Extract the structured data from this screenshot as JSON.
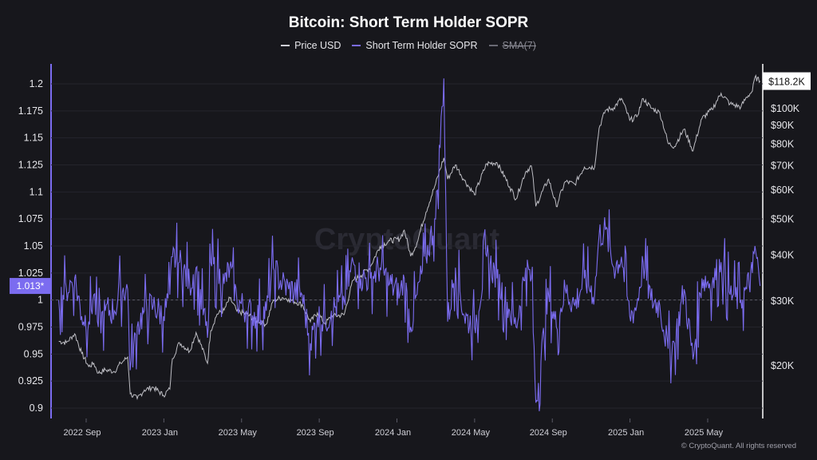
{
  "chart_data": {
    "type": "line",
    "title": "Bitcoin: Short Term Holder SOPR",
    "legend": [
      {
        "name": "Price USD",
        "color": "#cfcfd6",
        "enabled": true
      },
      {
        "name": "Short Term Holder SOPR",
        "color": "#7b6cf0",
        "enabled": true
      },
      {
        "name": "SMA(7)",
        "color": "#6a6a74",
        "enabled": false
      }
    ],
    "x_ticks": [
      "2022 Sep",
      "2023 Jan",
      "2023 May",
      "2023 Sep",
      "2024 Jan",
      "2024 May",
      "2024 Sep",
      "2025 Jan",
      "2025 May"
    ],
    "x_range": [
      "2022-07-20",
      "2025-07-22"
    ],
    "left_axis": {
      "ticks": [
        "1.2",
        "1.175",
        "1.15",
        "1.125",
        "1.1",
        "1.075",
        "1.05",
        "1.025",
        "1",
        "0.975",
        "0.95",
        "0.925",
        "0.9"
      ],
      "range": [
        0.895,
        1.21
      ],
      "current_label": "1.013*",
      "reference_line": 1.0
    },
    "right_axis": {
      "scale": "log",
      "ticks": [
        "$100K",
        "$90K",
        "$80K",
        "$70K",
        "$60K",
        "$50K",
        "$40K",
        "$30K",
        "$20K"
      ],
      "range": [
        15500,
        122000
      ],
      "current_label": "$118.2K"
    },
    "series": [
      {
        "name": "Price USD",
        "axis": "right",
        "color": "#cfcfd6",
        "points": [
          [
            "2022-07-20",
            23200
          ],
          [
            "2022-08-01",
            23000
          ],
          [
            "2022-08-14",
            24300
          ],
          [
            "2022-08-25",
            21500
          ],
          [
            "2022-09-05",
            19800
          ],
          [
            "2022-09-13",
            20200
          ],
          [
            "2022-09-20",
            19000
          ],
          [
            "2022-10-01",
            19400
          ],
          [
            "2022-10-15",
            19200
          ],
          [
            "2022-10-25",
            20200
          ],
          [
            "2022-11-05",
            21000
          ],
          [
            "2022-11-09",
            16700
          ],
          [
            "2022-11-20",
            16200
          ],
          [
            "2022-12-01",
            17100
          ],
          [
            "2022-12-15",
            17400
          ],
          [
            "2022-12-31",
            16550
          ],
          [
            "2023-01-10",
            17200
          ],
          [
            "2023-01-14",
            20800
          ],
          [
            "2023-01-25",
            23000
          ],
          [
            "2023-02-10",
            21800
          ],
          [
            "2023-02-20",
            24500
          ],
          [
            "2023-03-10",
            20200
          ],
          [
            "2023-03-15",
            24800
          ],
          [
            "2023-03-25",
            27500
          ],
          [
            "2023-04-05",
            28200
          ],
          [
            "2023-04-14",
            30400
          ],
          [
            "2023-04-25",
            28000
          ],
          [
            "2023-05-10",
            27500
          ],
          [
            "2023-05-25",
            26500
          ],
          [
            "2023-06-10",
            25800
          ],
          [
            "2023-06-21",
            30000
          ],
          [
            "2023-07-05",
            30500
          ],
          [
            "2023-07-15",
            30200
          ],
          [
            "2023-08-05",
            29200
          ],
          [
            "2023-08-18",
            26200
          ],
          [
            "2023-08-29",
            27700
          ],
          [
            "2023-09-10",
            25900
          ],
          [
            "2023-09-20",
            27100
          ],
          [
            "2023-10-10",
            27400
          ],
          [
            "2023-10-24",
            34000
          ],
          [
            "2023-11-05",
            35000
          ],
          [
            "2023-11-20",
            37000
          ],
          [
            "2023-12-05",
            42000
          ],
          [
            "2023-12-20",
            43500
          ],
          [
            "2024-01-05",
            44000
          ],
          [
            "2024-01-12",
            46500
          ],
          [
            "2024-01-22",
            39500
          ],
          [
            "2024-02-01",
            43000
          ],
          [
            "2024-02-15",
            52000
          ],
          [
            "2024-03-01",
            62000
          ],
          [
            "2024-03-14",
            73100
          ],
          [
            "2024-03-20",
            64000
          ],
          [
            "2024-04-01",
            70000
          ],
          [
            "2024-04-15",
            63500
          ],
          [
            "2024-05-01",
            58000
          ],
          [
            "2024-05-20",
            70500
          ],
          [
            "2024-06-05",
            71000
          ],
          [
            "2024-06-25",
            61000
          ],
          [
            "2024-07-05",
            56500
          ],
          [
            "2024-07-20",
            67000
          ],
          [
            "2024-07-29",
            69500
          ],
          [
            "2024-08-05",
            54000
          ],
          [
            "2024-08-25",
            64000
          ],
          [
            "2024-09-06",
            53900
          ],
          [
            "2024-09-20",
            63000
          ],
          [
            "2024-10-05",
            62000
          ],
          [
            "2024-10-20",
            69000
          ],
          [
            "2024-11-05",
            69000
          ],
          [
            "2024-11-12",
            88000
          ],
          [
            "2024-11-22",
            98500
          ],
          [
            "2024-12-05",
            100000
          ],
          [
            "2024-12-17",
            106000
          ],
          [
            "2024-12-30",
            92500
          ],
          [
            "2025-01-10",
            94500
          ],
          [
            "2025-01-20",
            106000
          ],
          [
            "2025-02-01",
            100000
          ],
          [
            "2025-02-15",
            97000
          ],
          [
            "2025-02-28",
            80000
          ],
          [
            "2025-03-10",
            78500
          ],
          [
            "2025-03-25",
            87500
          ],
          [
            "2025-04-08",
            76300
          ],
          [
            "2025-04-22",
            93500
          ],
          [
            "2025-05-08",
            99000
          ],
          [
            "2025-05-22",
            109500
          ],
          [
            "2025-06-05",
            102500
          ],
          [
            "2025-06-22",
            100500
          ],
          [
            "2025-07-01",
            107000
          ],
          [
            "2025-07-10",
            111000
          ],
          [
            "2025-07-14",
            121000
          ],
          [
            "2025-07-22",
            118200
          ]
        ]
      },
      {
        "name": "Short Term Holder SOPR",
        "axis": "left",
        "color": "#7b6cf0",
        "points": [
          [
            "2022-07-20",
            1.0
          ],
          [
            "2022-08-01",
            1.01
          ],
          [
            "2022-08-14",
            1.02
          ],
          [
            "2022-08-25",
            0.985
          ],
          [
            "2022-09-05",
            0.98
          ],
          [
            "2022-09-13",
            1.005
          ],
          [
            "2022-09-20",
            0.975
          ],
          [
            "2022-10-01",
            0.99
          ],
          [
            "2022-10-15",
            0.99
          ],
          [
            "2022-10-25",
            1.01
          ],
          [
            "2022-11-05",
            1.01
          ],
          [
            "2022-11-09",
            0.935
          ],
          [
            "2022-11-20",
            0.975
          ],
          [
            "2022-12-01",
            0.99
          ],
          [
            "2022-12-15",
            0.995
          ],
          [
            "2022-12-31",
            0.985
          ],
          [
            "2023-01-10",
            1.005
          ],
          [
            "2023-01-14",
            1.04
          ],
          [
            "2023-01-25",
            1.035
          ],
          [
            "2023-02-10",
            1.015
          ],
          [
            "2023-02-20",
            1.03
          ],
          [
            "2023-03-10",
            0.965
          ],
          [
            "2023-03-15",
            1.035
          ],
          [
            "2023-03-25",
            1.025
          ],
          [
            "2023-04-05",
            1.015
          ],
          [
            "2023-04-14",
            1.03
          ],
          [
            "2023-04-25",
            1.0
          ],
          [
            "2023-05-10",
            0.99
          ],
          [
            "2023-05-25",
            0.985
          ],
          [
            "2023-06-10",
            0.99
          ],
          [
            "2023-06-21",
            1.03
          ],
          [
            "2023-07-05",
            1.015
          ],
          [
            "2023-07-15",
            1.01
          ],
          [
            "2023-08-05",
            1.005
          ],
          [
            "2023-08-18",
            0.96
          ],
          [
            "2023-08-29",
            0.985
          ],
          [
            "2023-09-10",
            0.98
          ],
          [
            "2023-09-20",
            0.99
          ],
          [
            "2023-10-10",
            1.0
          ],
          [
            "2023-10-24",
            1.035
          ],
          [
            "2023-11-05",
            1.02
          ],
          [
            "2023-11-20",
            1.02
          ],
          [
            "2023-12-05",
            1.03
          ],
          [
            "2023-12-20",
            1.015
          ],
          [
            "2024-01-05",
            1.005
          ],
          [
            "2024-01-12",
            1.02
          ],
          [
            "2024-01-22",
            0.975
          ],
          [
            "2024-02-01",
            1.005
          ],
          [
            "2024-02-15",
            1.04
          ],
          [
            "2024-03-01",
            1.075
          ],
          [
            "2024-03-14",
            1.205
          ],
          [
            "2024-03-20",
            0.98
          ],
          [
            "2024-04-01",
            1.03
          ],
          [
            "2024-04-15",
            0.985
          ],
          [
            "2024-05-01",
            0.975
          ],
          [
            "2024-05-20",
            1.04
          ],
          [
            "2024-06-05",
            1.02
          ],
          [
            "2024-06-25",
            0.99
          ],
          [
            "2024-07-05",
            0.975
          ],
          [
            "2024-07-20",
            1.03
          ],
          [
            "2024-07-29",
            1.02
          ],
          [
            "2024-08-05",
            0.905
          ],
          [
            "2024-08-25",
            1.005
          ],
          [
            "2024-09-06",
            0.975
          ],
          [
            "2024-09-20",
            1.01
          ],
          [
            "2024-10-05",
            0.995
          ],
          [
            "2024-10-20",
            1.02
          ],
          [
            "2024-11-05",
            1.005
          ],
          [
            "2024-11-12",
            1.06
          ],
          [
            "2024-11-22",
            1.065
          ],
          [
            "2024-12-05",
            1.03
          ],
          [
            "2024-12-17",
            1.04
          ],
          [
            "2024-12-30",
            0.985
          ],
          [
            "2025-01-10",
            0.995
          ],
          [
            "2025-01-20",
            1.035
          ],
          [
            "2025-02-01",
            1.0
          ],
          [
            "2025-02-15",
            0.995
          ],
          [
            "2025-02-28",
            0.955
          ],
          [
            "2025-03-10",
            0.96
          ],
          [
            "2025-03-25",
            1.01
          ],
          [
            "2025-04-08",
            0.945
          ],
          [
            "2025-04-22",
            1.02
          ],
          [
            "2025-05-08",
            1.015
          ],
          [
            "2025-05-22",
            1.035
          ],
          [
            "2025-06-05",
            1.005
          ],
          [
            "2025-06-22",
            1.0
          ],
          [
            "2025-07-01",
            1.01
          ],
          [
            "2025-07-10",
            1.025
          ],
          [
            "2025-07-14",
            1.05
          ],
          [
            "2025-07-22",
            1.013
          ]
        ]
      }
    ],
    "watermark": "CryptoQuant"
  },
  "copyright": "© CryptoQuant. All rights reserved"
}
